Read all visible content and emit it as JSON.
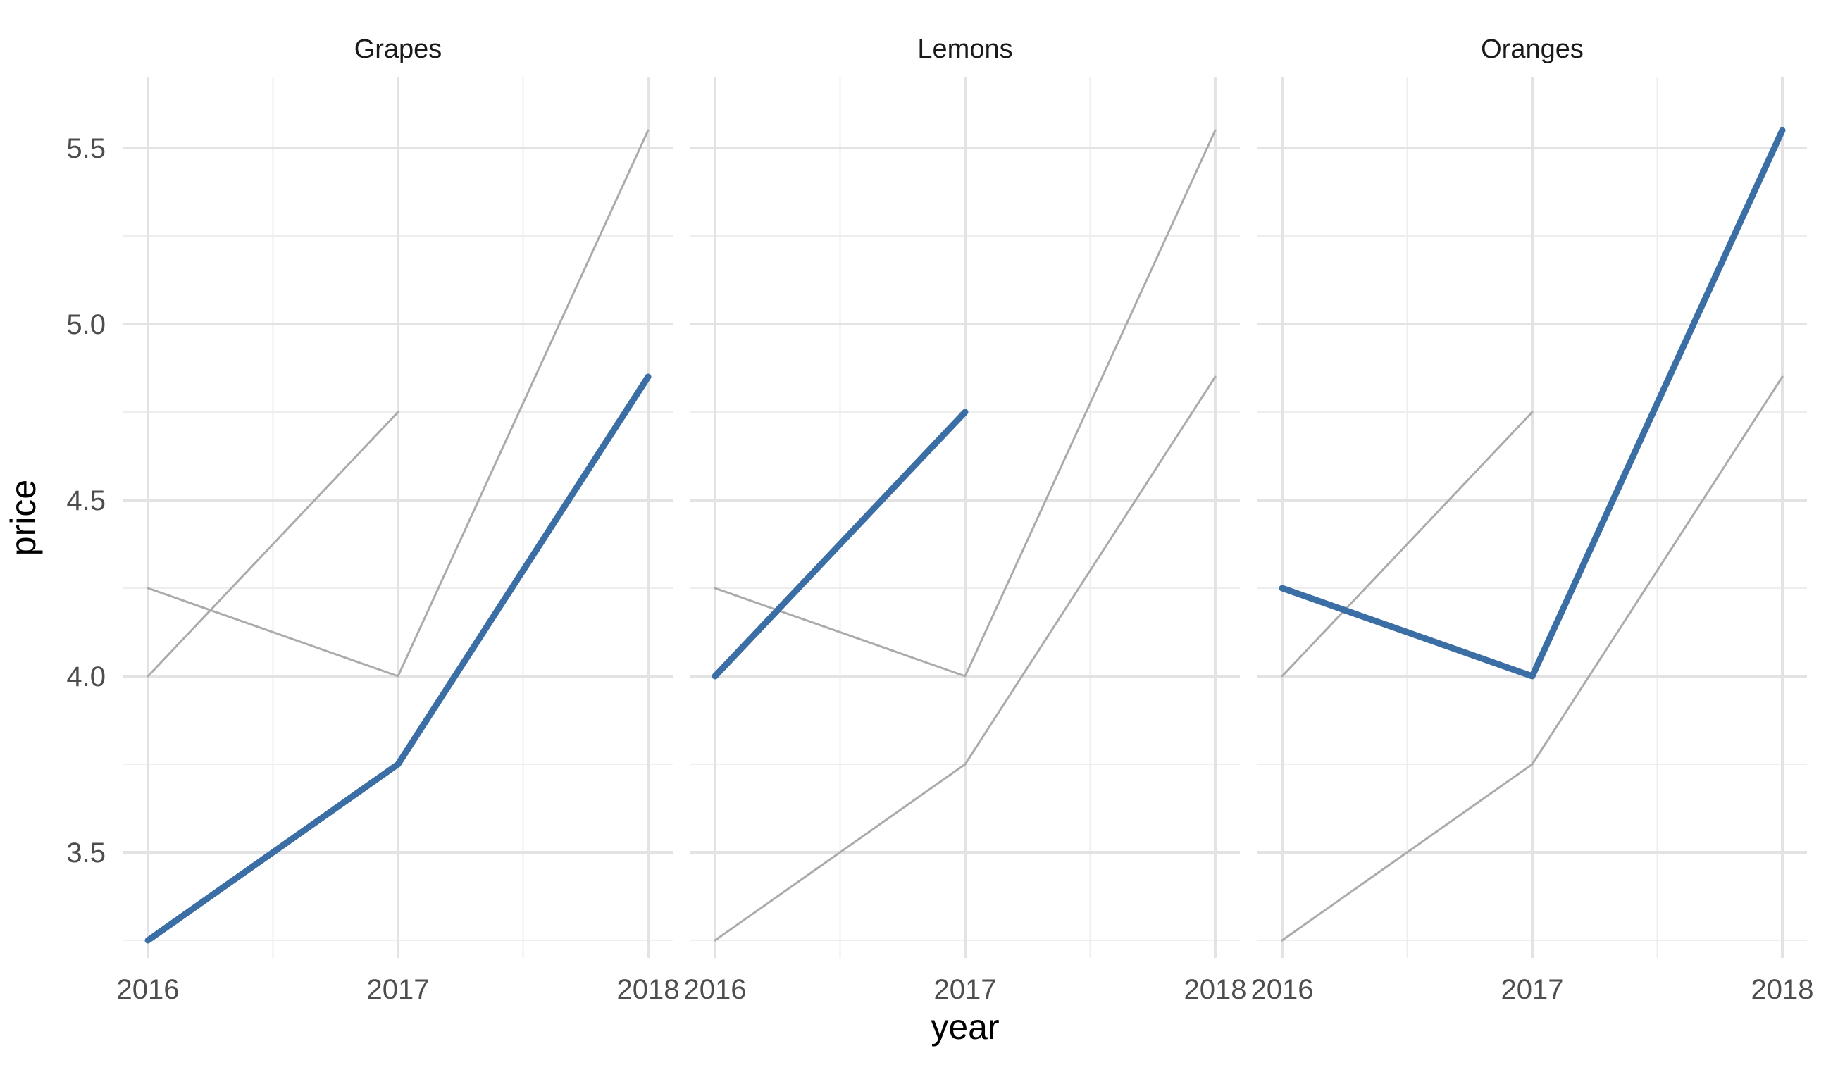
{
  "chart_data": {
    "type": "line",
    "layout": "faceted",
    "xlabel": "year",
    "ylabel": "price",
    "x": [
      2016,
      2017,
      2018
    ],
    "x_tick_labels": [
      "2016",
      "2017",
      "2018"
    ],
    "y_ticks": [
      3.5,
      4.0,
      4.5,
      5.0,
      5.5
    ],
    "y_tick_labels": [
      "3.5",
      "4.0",
      "4.5",
      "5.0",
      "5.5"
    ],
    "ylim": [
      3.2,
      5.7
    ],
    "grid": true,
    "legend": "none",
    "colors": {
      "highlight": "#3b6ea5",
      "background": "#ababab"
    },
    "series": [
      {
        "values": [
          3.25,
          3.75,
          4.85
        ]
      },
      {
        "values": [
          4.0,
          4.75,
          null
        ]
      },
      {
        "values": [
          4.25,
          4.0,
          5.55
        ]
      }
    ],
    "facets": [
      {
        "label": "Grapes",
        "highlight_series": 0
      },
      {
        "label": "Lemons",
        "highlight_series": 1
      },
      {
        "label": "Oranges",
        "highlight_series": 2
      }
    ]
  }
}
